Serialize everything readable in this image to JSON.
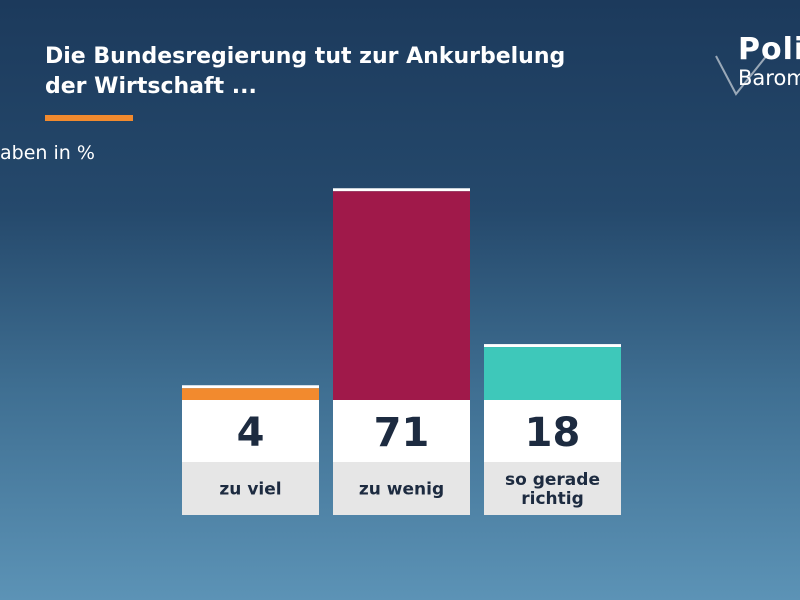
{
  "header": {
    "title": "Die Bundesregierung tut zur Ankurbelung\nder Wirtschaft ...",
    "subtitle": "aben in %"
  },
  "logo": {
    "line1": "Poli",
    "line2": "Barom"
  },
  "colors": {
    "background_top": "#1c3a5c",
    "background_bottom": "#5c93b6",
    "accent": "#f28a2e",
    "value_text": "#1d2b40"
  },
  "chart_data": {
    "type": "bar",
    "title": "Die Bundesregierung tut zur Ankurbelung der Wirtschaft ...",
    "ylabel": "aben in %",
    "categories": [
      "zu viel",
      "zu wenig",
      "so gerade richtig"
    ],
    "category_lines": [
      [
        "zu viel"
      ],
      [
        "zu wenig"
      ],
      [
        "so gerade",
        "richtig"
      ]
    ],
    "values": [
      4,
      71,
      18
    ],
    "bar_colors": [
      "#f28a2e",
      "#a0194a",
      "#3ec8ba"
    ],
    "grid": false,
    "legend": "none"
  }
}
